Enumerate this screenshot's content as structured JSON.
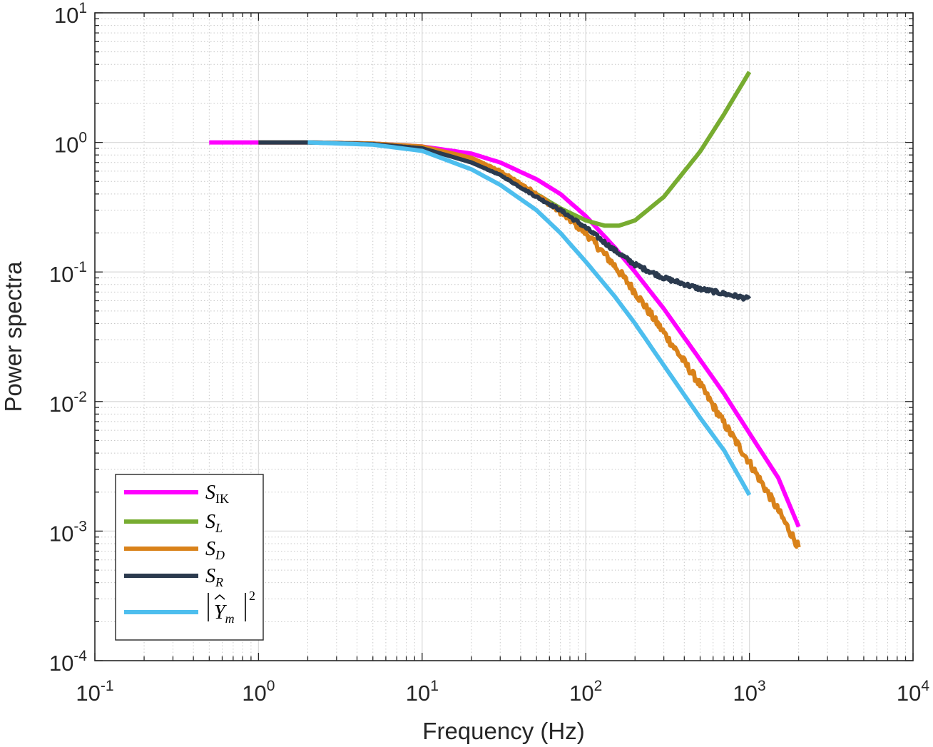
{
  "chart_data": {
    "type": "line",
    "title": "",
    "xlabel": "Frequency (Hz)",
    "ylabel": "Power spectra",
    "xscale": "log",
    "yscale": "log",
    "xlim": [
      0.1,
      10000
    ],
    "ylim": [
      0.0001,
      10
    ],
    "grid": true,
    "minor_grid": true,
    "legend_position": "bottom-left",
    "x_ticks": [
      {
        "base": "10",
        "exp": "-1"
      },
      {
        "base": "10",
        "exp": "0"
      },
      {
        "base": "10",
        "exp": "1"
      },
      {
        "base": "10",
        "exp": "2"
      },
      {
        "base": "10",
        "exp": "3"
      },
      {
        "base": "10",
        "exp": "4"
      }
    ],
    "y_ticks": [
      {
        "base": "10",
        "exp": "-4"
      },
      {
        "base": "10",
        "exp": "-3"
      },
      {
        "base": "10",
        "exp": "-2"
      },
      {
        "base": "10",
        "exp": "-1"
      },
      {
        "base": "10",
        "exp": "0"
      },
      {
        "base": "10",
        "exp": "1"
      }
    ],
    "series": [
      {
        "name": "S_IK",
        "legend_main": "S",
        "legend_sub": "IK",
        "color": "#ff00ff",
        "noise": 0,
        "x": [
          0.5,
          1,
          2,
          5,
          10,
          20,
          30,
          50,
          70,
          100,
          150,
          200,
          300,
          500,
          700,
          1000,
          1500,
          2000
        ],
        "y": [
          1.0,
          1.0,
          1.0,
          0.98,
          0.93,
          0.82,
          0.7,
          0.52,
          0.4,
          0.27,
          0.155,
          0.1,
          0.052,
          0.021,
          0.0115,
          0.0057,
          0.00258,
          0.00108
        ]
      },
      {
        "name": "S_L",
        "legend_main": "S",
        "legend_sub": "L",
        "color": "#77ac30",
        "noise": 0,
        "x": [
          1,
          2,
          5,
          10,
          20,
          30,
          50,
          70,
          100,
          130,
          160,
          200,
          300,
          500,
          700,
          1000
        ],
        "y": [
          1.0,
          1.0,
          0.98,
          0.92,
          0.75,
          0.58,
          0.4,
          0.31,
          0.25,
          0.228,
          0.228,
          0.25,
          0.38,
          0.85,
          1.65,
          3.5
        ]
      },
      {
        "name": "S_D",
        "legend_main": "S",
        "legend_sub": "D",
        "color": "#d9821a",
        "noise": 0.06,
        "x": [
          1,
          2,
          5,
          10,
          20,
          30,
          50,
          70,
          100,
          150,
          200,
          300,
          500,
          700,
          1000,
          1500,
          2000
        ],
        "y": [
          1.0,
          1.0,
          0.98,
          0.93,
          0.76,
          0.6,
          0.4,
          0.29,
          0.2,
          0.112,
          0.07,
          0.034,
          0.0135,
          0.0068,
          0.0034,
          0.00145,
          0.00075
        ]
      },
      {
        "name": "S_R",
        "legend_main": "S",
        "legend_sub": "R",
        "color": "#2b3a4e",
        "noise": 0.03,
        "x": [
          1,
          2,
          5,
          10,
          15,
          20,
          30,
          50,
          70,
          100,
          150,
          200,
          300,
          500,
          700,
          1000
        ],
        "y": [
          1.0,
          1.0,
          0.97,
          0.9,
          0.78,
          0.7,
          0.56,
          0.38,
          0.3,
          0.22,
          0.147,
          0.114,
          0.09,
          0.074,
          0.068,
          0.062
        ]
      },
      {
        "name": "|Y_m|^2",
        "legend_main": "Y",
        "legend_sub": "m",
        "legend_sup": "2",
        "color": "#4dbeee",
        "noise": 0,
        "x": [
          2,
          5,
          10,
          20,
          30,
          50,
          70,
          100,
          150,
          200,
          300,
          500,
          700,
          1000
        ],
        "y": [
          1.0,
          0.96,
          0.86,
          0.62,
          0.47,
          0.3,
          0.2,
          0.12,
          0.065,
          0.04,
          0.019,
          0.0075,
          0.0042,
          0.0019
        ]
      }
    ]
  }
}
